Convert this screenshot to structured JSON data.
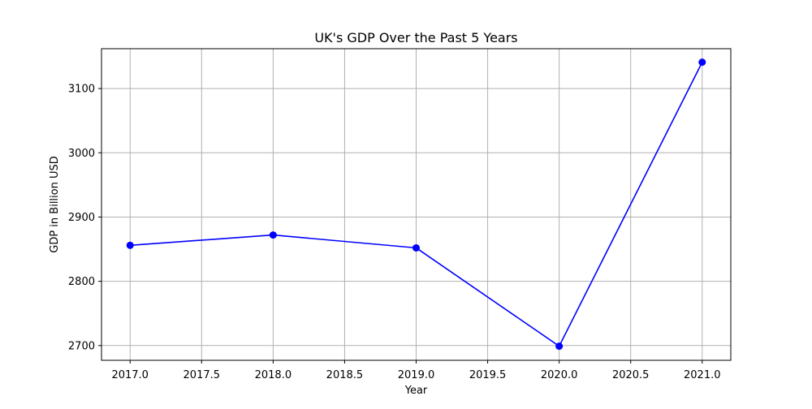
{
  "chart_data": {
    "type": "line",
    "title": "UK's GDP Over the Past 5 Years",
    "xlabel": "Year",
    "ylabel": "GDP in Billion USD",
    "x": [
      2017,
      2018,
      2019,
      2020,
      2021
    ],
    "series": [
      {
        "values": [
          2856,
          2872,
          2852,
          2699,
          3141
        ],
        "color": "#0000ff",
        "marker": "circle"
      }
    ],
    "xlim": [
      2016.8,
      2021.2
    ],
    "ylim": [
      2677,
      3162
    ],
    "x_ticks": [
      2017.0,
      2017.5,
      2018.0,
      2018.5,
      2019.0,
      2019.5,
      2020.0,
      2020.5,
      2021.0
    ],
    "x_tick_labels": [
      "2017.0",
      "2017.5",
      "2018.0",
      "2018.5",
      "2019.0",
      "2019.5",
      "2020.0",
      "2020.5",
      "2021.0"
    ],
    "y_ticks": [
      2700,
      2800,
      2900,
      3000,
      3100
    ],
    "y_tick_labels": [
      "2700",
      "2800",
      "2900",
      "3000",
      "3100"
    ],
    "grid": true,
    "legend": "none"
  }
}
